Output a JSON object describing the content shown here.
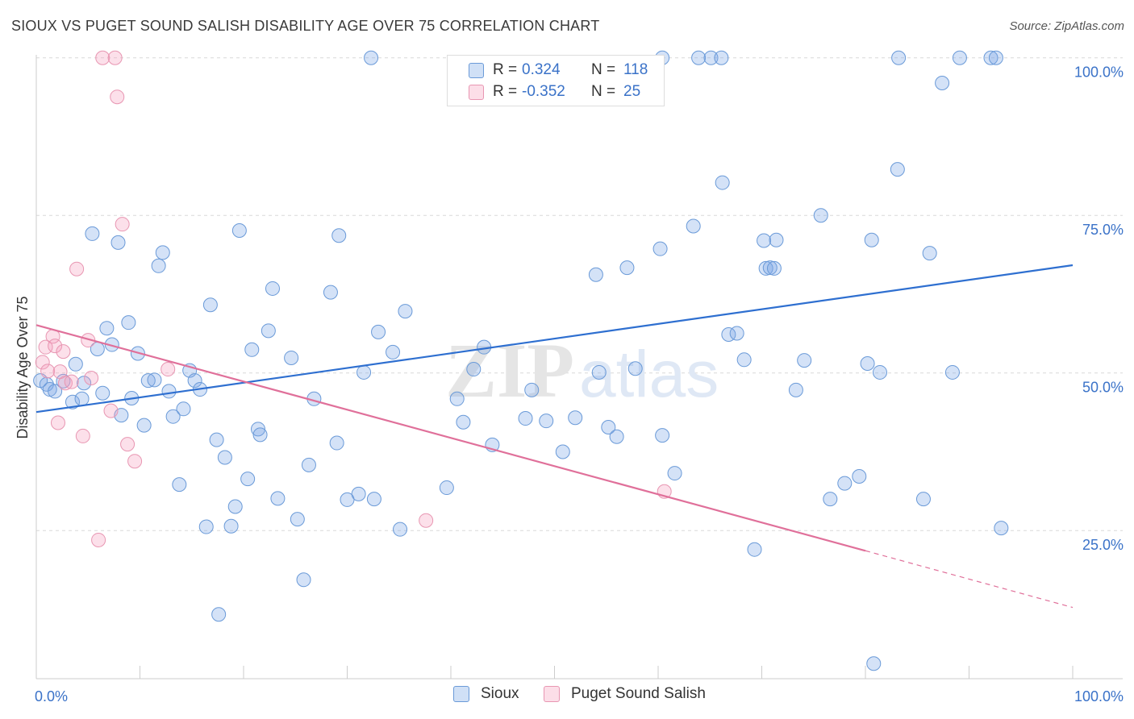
{
  "title": "SIOUX VS PUGET SOUND SALISH DISABILITY AGE OVER 75 CORRELATION CHART",
  "source": "Source: ZipAtlas.com",
  "watermark": {
    "zip": "ZIP",
    "atlas": "atlas"
  },
  "colors": {
    "sioux_fill": "rgba(120,165,230,0.32)",
    "sioux_stroke": "#6a9ad8",
    "sioux_line": "#2e6fd0",
    "salish_fill": "rgba(245,160,190,0.32)",
    "salish_stroke": "#e896b2",
    "salish_line": "#e0709a",
    "axis_text": "#3a72c8",
    "grid": "#d9d9d9"
  },
  "legend_top": {
    "rows": [
      {
        "r_label": "R =",
        "r_value": "0.324",
        "n_label": "N =",
        "n_value": "118"
      },
      {
        "r_label": "R =",
        "r_value": "-0.352",
        "n_label": "N =",
        "n_value": "25"
      }
    ]
  },
  "legend_bottom": {
    "items": [
      "Sioux",
      "Puget Sound Salish"
    ]
  },
  "chart_data": {
    "type": "scatter",
    "title": "SIOUX VS PUGET SOUND SALISH DISABILITY AGE OVER 75 CORRELATION CHART",
    "xlabel": "",
    "ylabel": "Disability Age Over 75",
    "xlim": [
      0,
      100
    ],
    "ylim": [
      1.5,
      101.5
    ],
    "x_tick_labels": [
      "0.0%",
      "100.0%"
    ],
    "y_ticks": [
      25,
      50,
      75,
      100
    ],
    "y_tick_labels": [
      "25.0%",
      "50.0%",
      "75.0%",
      "100.0%"
    ],
    "grid": true,
    "legend_position": "bottom",
    "series": [
      {
        "name": "Sioux",
        "R": 0.324,
        "N": 118,
        "trend": {
          "x": [
            0,
            100
          ],
          "y": [
            43.8,
            67.1
          ]
        },
        "points": [
          [
            0.4,
            48.8
          ],
          [
            1.0,
            48.2
          ],
          [
            1.3,
            47.4
          ],
          [
            1.8,
            47.1
          ],
          [
            2.6,
            48.7
          ],
          [
            3.5,
            45.4
          ],
          [
            3.8,
            51.4
          ],
          [
            4.4,
            45.9
          ],
          [
            4.6,
            48.4
          ],
          [
            5.4,
            72.1
          ],
          [
            5.9,
            53.8
          ],
          [
            6.4,
            46.8
          ],
          [
            6.8,
            57.1
          ],
          [
            7.3,
            54.5
          ],
          [
            7.9,
            70.7
          ],
          [
            8.2,
            43.3
          ],
          [
            8.9,
            58.0
          ],
          [
            9.2,
            46.0
          ],
          [
            9.8,
            53.1
          ],
          [
            10.4,
            41.7
          ],
          [
            10.8,
            48.8
          ],
          [
            11.4,
            48.9
          ],
          [
            11.8,
            67.0
          ],
          [
            12.2,
            69.1
          ],
          [
            12.8,
            47.1
          ],
          [
            13.2,
            43.1
          ],
          [
            13.8,
            32.3
          ],
          [
            14.2,
            44.3
          ],
          [
            14.8,
            50.4
          ],
          [
            15.3,
            48.8
          ],
          [
            15.8,
            47.4
          ],
          [
            16.4,
            25.6
          ],
          [
            16.8,
            60.8
          ],
          [
            17.4,
            39.4
          ],
          [
            17.6,
            11.7
          ],
          [
            18.2,
            36.6
          ],
          [
            18.8,
            25.7
          ],
          [
            19.2,
            28.8
          ],
          [
            19.6,
            72.6
          ],
          [
            20.4,
            33.2
          ],
          [
            20.8,
            53.7
          ],
          [
            21.4,
            41.1
          ],
          [
            21.6,
            40.2
          ],
          [
            22.4,
            56.7
          ],
          [
            22.8,
            63.4
          ],
          [
            23.3,
            30.1
          ],
          [
            24.6,
            52.4
          ],
          [
            25.2,
            26.8
          ],
          [
            25.8,
            17.2
          ],
          [
            26.3,
            35.4
          ],
          [
            26.8,
            45.9
          ],
          [
            28.4,
            62.8
          ],
          [
            29.0,
            38.9
          ],
          [
            29.2,
            71.8
          ],
          [
            30.0,
            29.9
          ],
          [
            31.1,
            30.8
          ],
          [
            31.6,
            50.1
          ],
          [
            32.3,
            100.0
          ],
          [
            32.6,
            30.0
          ],
          [
            33.0,
            56.5
          ],
          [
            34.4,
            53.3
          ],
          [
            35.1,
            25.2
          ],
          [
            35.6,
            59.8
          ],
          [
            39.6,
            31.8
          ],
          [
            40.6,
            45.9
          ],
          [
            41.2,
            42.2
          ],
          [
            42.2,
            50.6
          ],
          [
            43.2,
            54.1
          ],
          [
            44.0,
            38.6
          ],
          [
            47.2,
            42.8
          ],
          [
            47.8,
            47.3
          ],
          [
            49.2,
            42.4
          ],
          [
            50.8,
            37.5
          ],
          [
            52.0,
            42.9
          ],
          [
            54.0,
            65.6
          ],
          [
            54.3,
            50.1
          ],
          [
            55.2,
            41.4
          ],
          [
            56.0,
            39.9
          ],
          [
            57.0,
            66.7
          ],
          [
            57.8,
            50.7
          ],
          [
            60.2,
            69.7
          ],
          [
            60.4,
            40.1
          ],
          [
            60.4,
            100.0
          ],
          [
            61.6,
            34.1
          ],
          [
            63.4,
            73.3
          ],
          [
            63.9,
            100.0
          ],
          [
            65.1,
            100.0
          ],
          [
            66.1,
            100.0
          ],
          [
            66.2,
            80.2
          ],
          [
            66.8,
            56.1
          ],
          [
            67.6,
            56.3
          ],
          [
            68.3,
            52.1
          ],
          [
            69.3,
            22.0
          ],
          [
            70.2,
            71.0
          ],
          [
            70.4,
            66.6
          ],
          [
            70.8,
            66.7
          ],
          [
            71.2,
            66.6
          ],
          [
            71.4,
            71.1
          ],
          [
            73.3,
            47.3
          ],
          [
            74.1,
            52.0
          ],
          [
            75.7,
            75.0
          ],
          [
            76.6,
            30.0
          ],
          [
            78.0,
            32.5
          ],
          [
            79.4,
            33.6
          ],
          [
            80.2,
            51.5
          ],
          [
            80.6,
            71.1
          ],
          [
            80.8,
            3.9
          ],
          [
            81.4,
            50.1
          ],
          [
            83.1,
            82.3
          ],
          [
            83.2,
            100.0
          ],
          [
            85.6,
            30.0
          ],
          [
            86.2,
            69.0
          ],
          [
            87.4,
            96.0
          ],
          [
            88.4,
            50.1
          ],
          [
            89.1,
            100.0
          ],
          [
            92.1,
            100.0
          ],
          [
            92.6,
            100.0
          ],
          [
            93.1,
            25.4
          ]
        ]
      },
      {
        "name": "Puget Sound Salish",
        "R": -0.352,
        "N": 25,
        "trend": {
          "x": [
            0,
            80
          ],
          "y": [
            57.6,
            21.8
          ]
        },
        "trend_dashed": {
          "x": [
            80,
            100
          ],
          "y": [
            21.8,
            12.8
          ]
        },
        "points": [
          [
            0.6,
            51.7
          ],
          [
            0.9,
            54.1
          ],
          [
            1.1,
            50.3
          ],
          [
            1.6,
            55.8
          ],
          [
            1.8,
            54.3
          ],
          [
            2.1,
            42.1
          ],
          [
            2.3,
            50.2
          ],
          [
            2.6,
            53.4
          ],
          [
            2.8,
            48.4
          ],
          [
            3.4,
            48.6
          ],
          [
            3.9,
            66.5
          ],
          [
            4.5,
            40.0
          ],
          [
            5.0,
            55.2
          ],
          [
            5.3,
            49.2
          ],
          [
            6.0,
            23.5
          ],
          [
            6.4,
            100.0
          ],
          [
            7.2,
            44.0
          ],
          [
            7.6,
            100.0
          ],
          [
            7.8,
            93.8
          ],
          [
            8.3,
            73.6
          ],
          [
            8.8,
            38.7
          ],
          [
            9.5,
            36.0
          ],
          [
            12.7,
            50.6
          ],
          [
            37.6,
            26.6
          ],
          [
            60.6,
            31.2
          ]
        ]
      }
    ]
  }
}
